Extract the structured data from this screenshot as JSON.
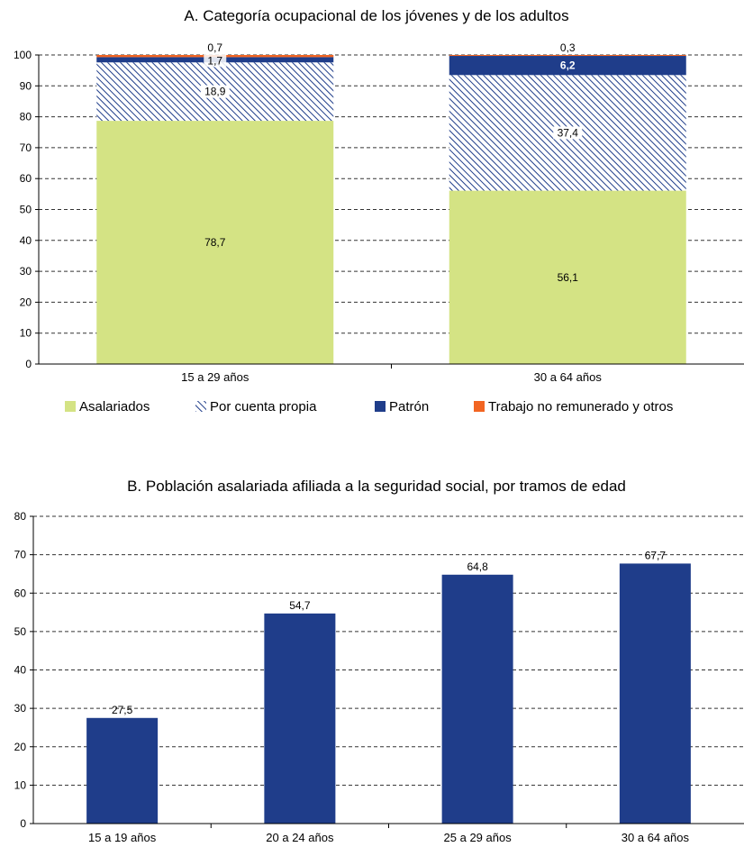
{
  "chart_data": [
    {
      "type": "bar",
      "stacked": true,
      "title": "A. Categoría ocupacional de los jóvenes y de los adultos",
      "xlabel": "",
      "ylabel": "",
      "ylim": [
        0,
        100
      ],
      "yticks": [
        0,
        10,
        20,
        30,
        40,
        50,
        60,
        70,
        80,
        90,
        100
      ],
      "grid": true,
      "legend_position": "bottom",
      "categories": [
        "15 a 29 años",
        "30 a 64 años"
      ],
      "series": [
        {
          "name": "Asalariados",
          "values": [
            78.7,
            56.1
          ],
          "labels": [
            "78,7",
            "56,1"
          ],
          "color": "#d4e384",
          "pattern": "solid"
        },
        {
          "name": "Por cuenta propia",
          "values": [
            18.9,
            37.4
          ],
          "labels": [
            "18,9",
            "37,4"
          ],
          "color": "#1f3d8a",
          "pattern": "hatched"
        },
        {
          "name": "Patrón",
          "values": [
            1.7,
            6.2
          ],
          "labels": [
            "1,7",
            "6,2"
          ],
          "color": "#1f3d8a",
          "pattern": "solid"
        },
        {
          "name": "Trabajo no remunerado y otros",
          "values": [
            0.7,
            0.3
          ],
          "labels": [
            "0,7",
            "0,3"
          ],
          "color": "#f26522",
          "pattern": "solid"
        }
      ]
    },
    {
      "type": "bar",
      "title": "B. Población asalariada afiliada a la seguridad social, por tramos de edad",
      "xlabel": "",
      "ylabel": "",
      "ylim": [
        0,
        80
      ],
      "yticks": [
        0,
        10,
        20,
        30,
        40,
        50,
        60,
        70,
        80
      ],
      "grid": true,
      "categories": [
        "15 a 19 años",
        "20 a 24 años",
        "25 a 29 años",
        "30 a 64 años"
      ],
      "values": [
        27.5,
        54.7,
        64.8,
        67.7
      ],
      "labels": [
        "27,5",
        "54,7",
        "64,8",
        "67,7"
      ],
      "color": "#1f3d8a"
    }
  ]
}
